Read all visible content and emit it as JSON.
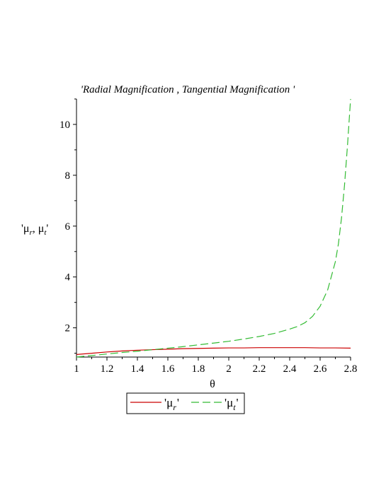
{
  "chart_data": {
    "type": "line",
    "title": "'Radial Magnification , Tangential Magnification '",
    "xlabel": "θ",
    "ylabel": {
      "prefix": "'μ",
      "sub1": "r",
      "middle": ", μ",
      "sub2": "t",
      "suffix": "'"
    },
    "xlim": [
      1.0,
      2.8
    ],
    "ylim": [
      0.85,
      11.0
    ],
    "x_ticks": [
      1,
      1.2,
      1.4,
      1.6,
      1.8,
      2,
      2.2,
      2.4,
      2.6,
      2.8
    ],
    "y_ticks": [
      2,
      4,
      6,
      8,
      10
    ],
    "grid": false,
    "legend_position": "bottom",
    "series": [
      {
        "name": "'μ_r'",
        "legend": {
          "main": "'μ",
          "sub": "r",
          "end": "'"
        },
        "color": "#cc0000",
        "style": "solid",
        "x": [
          1.0,
          1.1,
          1.2,
          1.3,
          1.4,
          1.5,
          1.6,
          1.7,
          1.8,
          1.9,
          2.0,
          2.1,
          2.2,
          2.3,
          2.4,
          2.5,
          2.6,
          2.7,
          2.8
        ],
        "y": [
          0.95,
          1.0,
          1.05,
          1.09,
          1.12,
          1.14,
          1.16,
          1.18,
          1.19,
          1.2,
          1.21,
          1.21,
          1.22,
          1.22,
          1.22,
          1.22,
          1.21,
          1.21,
          1.2
        ]
      },
      {
        "name": "'μ_t'",
        "legend": {
          "main": "'μ",
          "sub": "t",
          "end": "'"
        },
        "color": "#33bb33",
        "style": "dashed",
        "x": [
          1.0,
          1.1,
          1.2,
          1.3,
          1.4,
          1.5,
          1.6,
          1.7,
          1.8,
          1.9,
          2.0,
          2.1,
          2.2,
          2.3,
          2.4,
          2.45,
          2.5,
          2.55,
          2.6,
          2.65,
          2.7,
          2.72,
          2.74,
          2.76,
          2.78,
          2.8
        ],
        "y": [
          0.85,
          0.91,
          0.97,
          1.03,
          1.08,
          1.14,
          1.2,
          1.26,
          1.33,
          1.4,
          1.47,
          1.56,
          1.66,
          1.78,
          1.95,
          2.05,
          2.2,
          2.45,
          2.85,
          3.5,
          4.6,
          5.3,
          6.3,
          7.6,
          9.2,
          11.0
        ]
      }
    ]
  }
}
